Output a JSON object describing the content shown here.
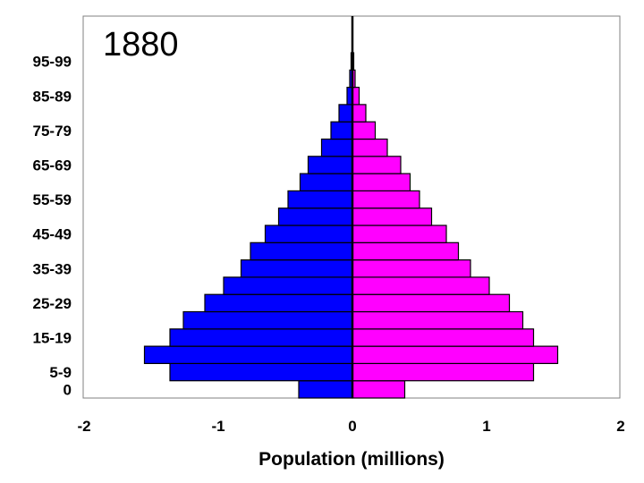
{
  "chart_data": {
    "type": "bar",
    "orientation": "horizontal",
    "title": "1880",
    "xlabel": "Population (millions)",
    "ylabel": "",
    "xlim": [
      -2,
      2
    ],
    "x_ticks": [
      "-2",
      "-1",
      "0",
      "1",
      "2"
    ],
    "categories": [
      "0",
      "5-9",
      "10-14",
      "15-19",
      "20-24",
      "25-29",
      "30-34",
      "35-39",
      "40-44",
      "45-49",
      "50-54",
      "55-59",
      "60-64",
      "65-69",
      "70-74",
      "75-79",
      "80-84",
      "85-89",
      "90-94",
      "95-99"
    ],
    "y_tick_labels": [
      "0",
      "5-9",
      "15-19",
      "25-29",
      "35-39",
      "45-49",
      "55-59",
      "65-69",
      "75-79",
      "85-89",
      "95-99"
    ],
    "series": [
      {
        "color": "#0000ff",
        "values": [
          -0.4,
          -1.36,
          -1.55,
          -1.36,
          -1.26,
          -1.1,
          -0.96,
          -0.83,
          -0.76,
          -0.65,
          -0.55,
          -0.48,
          -0.39,
          -0.33,
          -0.23,
          -0.16,
          -0.1,
          -0.04,
          -0.02,
          -0.01
        ]
      },
      {
        "color": "#ff00ff",
        "values": [
          0.39,
          1.35,
          1.53,
          1.35,
          1.27,
          1.17,
          1.02,
          0.88,
          0.79,
          0.7,
          0.59,
          0.5,
          0.43,
          0.36,
          0.26,
          0.17,
          0.1,
          0.05,
          0.02,
          0.01
        ]
      }
    ],
    "grid": false,
    "legend": "none"
  }
}
